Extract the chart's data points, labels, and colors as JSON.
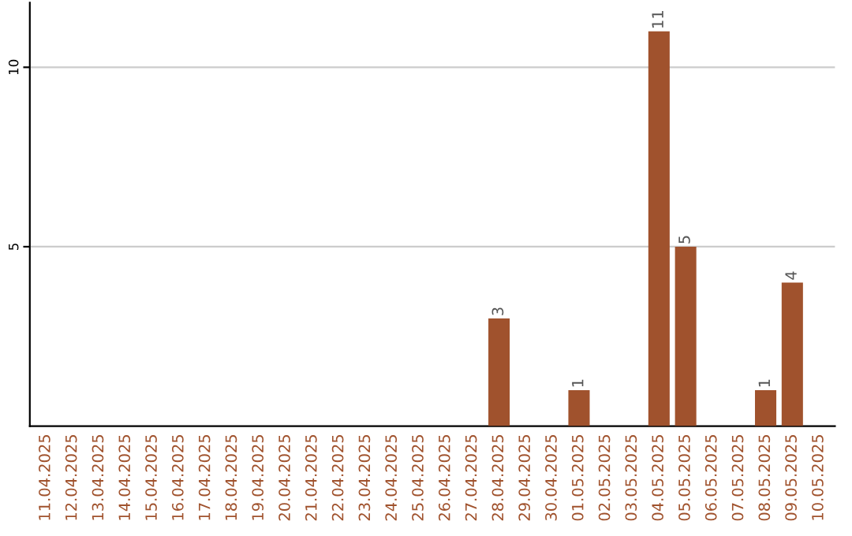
{
  "chart_data": {
    "type": "bar",
    "categories": [
      "11.04.2025",
      "12.04.2025",
      "13.04.2025",
      "14.04.2025",
      "15.04.2025",
      "16.04.2025",
      "17.04.2025",
      "18.04.2025",
      "19.04.2025",
      "20.04.2025",
      "21.04.2025",
      "22.04.2025",
      "23.04.2025",
      "24.04.2025",
      "25.04.2025",
      "26.04.2025",
      "27.04.2025",
      "28.04.2025",
      "29.04.2025",
      "30.04.2025",
      "01.05.2025",
      "02.05.2025",
      "03.05.2025",
      "04.05.2025",
      "05.05.2025",
      "06.05.2025",
      "07.05.2025",
      "08.05.2025",
      "09.05.2025",
      "10.05.2025"
    ],
    "values": [
      0,
      0,
      0,
      0,
      0,
      0,
      0,
      0,
      0,
      0,
      0,
      0,
      0,
      0,
      0,
      0,
      0,
      3,
      0,
      0,
      1,
      0,
      0,
      11,
      5,
      0,
      0,
      1,
      4,
      0
    ],
    "value_labels": [
      null,
      null,
      null,
      null,
      null,
      null,
      null,
      null,
      null,
      null,
      null,
      null,
      null,
      null,
      null,
      null,
      null,
      "3",
      null,
      null,
      "1",
      null,
      null,
      "11",
      "5",
      null,
      null,
      "1",
      "4",
      null
    ],
    "color": "#a0522d",
    "ylim": [
      0,
      11.8
    ],
    "yticks": [
      5,
      10
    ],
    "grid": "y",
    "legend": false
  }
}
